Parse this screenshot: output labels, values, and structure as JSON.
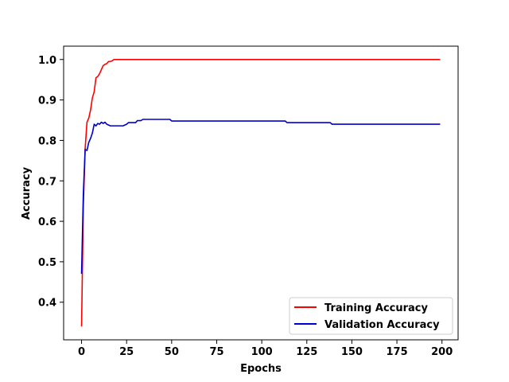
{
  "chart_data": {
    "type": "line",
    "title": "",
    "xlabel": "Epochs",
    "ylabel": "Accuracy",
    "xlim": [
      -9.95,
      208.95
    ],
    "ylim": [
      0.307,
      1.033
    ],
    "xticks": [
      0,
      25,
      50,
      75,
      100,
      125,
      150,
      175,
      200
    ],
    "yticks": [
      0.4,
      0.5,
      0.6,
      0.7,
      0.8,
      0.9,
      1.0
    ],
    "ytick_labels": [
      "0.4",
      "0.5",
      "0.6",
      "0.7",
      "0.8",
      "0.9",
      "1.0"
    ],
    "grid": false,
    "legend_position": "lower-right",
    "series": [
      {
        "name": "Training Accuracy",
        "color": "#ff0000",
        "points": [
          [
            0,
            0.34
          ],
          [
            1,
            0.64
          ],
          [
            2,
            0.78
          ],
          [
            3,
            0.845
          ],
          [
            4,
            0.855
          ],
          [
            5,
            0.875
          ],
          [
            6,
            0.905
          ],
          [
            7,
            0.92
          ],
          [
            8,
            0.955
          ],
          [
            9,
            0.958
          ],
          [
            10,
            0.965
          ],
          [
            11,
            0.975
          ],
          [
            12,
            0.985
          ],
          [
            13,
            0.988
          ],
          [
            14,
            0.99
          ],
          [
            15,
            0.995
          ],
          [
            16,
            0.995
          ],
          [
            17,
            0.997
          ],
          [
            18,
            1.0
          ],
          [
            199,
            1.0
          ]
        ]
      },
      {
        "name": "Validation Accuracy",
        "color": "#0000cc",
        "points": [
          [
            0,
            0.47
          ],
          [
            1,
            0.67
          ],
          [
            2,
            0.778
          ],
          [
            3,
            0.775
          ],
          [
            4,
            0.795
          ],
          [
            5,
            0.805
          ],
          [
            6,
            0.818
          ],
          [
            7,
            0.84
          ],
          [
            8,
            0.836
          ],
          [
            9,
            0.842
          ],
          [
            10,
            0.84
          ],
          [
            11,
            0.845
          ],
          [
            12,
            0.842
          ],
          [
            13,
            0.845
          ],
          [
            14,
            0.84
          ],
          [
            15,
            0.838
          ],
          [
            16,
            0.836
          ],
          [
            17,
            0.836
          ],
          [
            23,
            0.836
          ],
          [
            25,
            0.84
          ],
          [
            26,
            0.844
          ],
          [
            30,
            0.844
          ],
          [
            31,
            0.849
          ],
          [
            33,
            0.849
          ],
          [
            34,
            0.852
          ],
          [
            49,
            0.852
          ],
          [
            50,
            0.848
          ],
          [
            113,
            0.848
          ],
          [
            114,
            0.844
          ],
          [
            138,
            0.844
          ],
          [
            139,
            0.84
          ],
          [
            199,
            0.84
          ]
        ]
      }
    ]
  }
}
